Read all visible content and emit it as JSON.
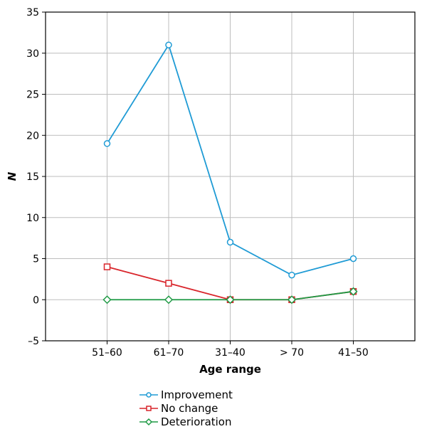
{
  "chart_data": {
    "type": "line",
    "categories": [
      "51–60",
      "61–70",
      "31–40",
      "> 70",
      "41–50"
    ],
    "series": [
      {
        "name": "Improvement",
        "values": [
          19,
          31,
          7,
          3,
          5
        ],
        "color": "#1f9bd5",
        "marker": "circle"
      },
      {
        "name": "No change",
        "values": [
          4,
          2,
          0,
          0,
          1
        ],
        "color": "#d9252b",
        "marker": "square"
      },
      {
        "name": "Deterioration",
        "values": [
          0,
          0,
          0,
          0,
          1
        ],
        "color": "#1f9a45",
        "marker": "diamond"
      }
    ],
    "xlabel": "Age range",
    "ylabel": "N",
    "ylim": [
      -5,
      35
    ],
    "yticks": [
      -5,
      0,
      5,
      10,
      15,
      20,
      25,
      30,
      35
    ],
    "ytick_labels": [
      "–5",
      "0",
      "5",
      "10",
      "15",
      "20",
      "25",
      "30",
      "35"
    ],
    "grid": true,
    "legend_position": "bottom-center"
  }
}
